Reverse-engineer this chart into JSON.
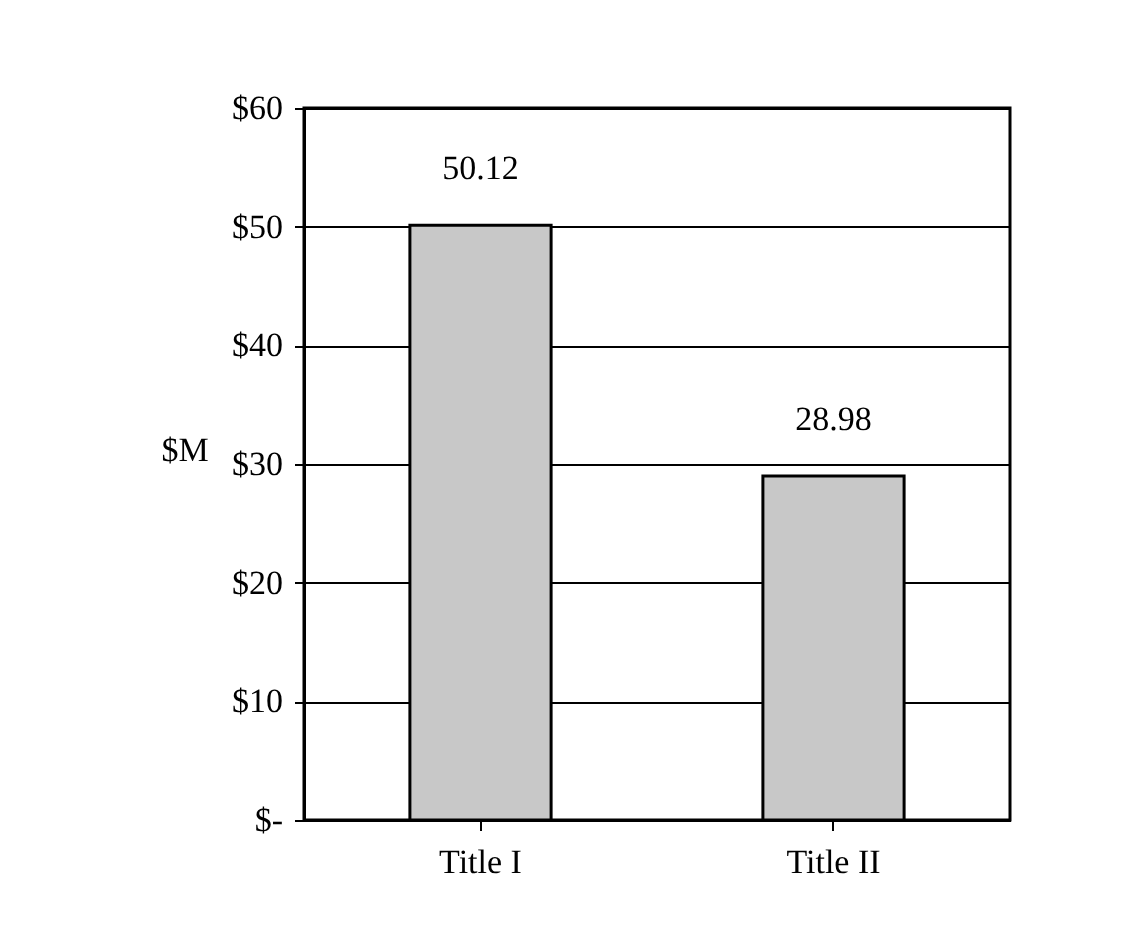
{
  "chart_data": {
    "type": "bar",
    "categories": [
      "Title I",
      "Title II"
    ],
    "values": [
      50.12,
      28.98
    ],
    "color": "#c8c8c8",
    "ylabel": "$M",
    "ylim": [
      0,
      60
    ],
    "yticks": [
      {
        "value": 0,
        "label": "$-"
      },
      {
        "value": 10,
        "label": "$10"
      },
      {
        "value": 20,
        "label": "$20"
      },
      {
        "value": 30,
        "label": "$30"
      },
      {
        "value": 40,
        "label": "$40"
      },
      {
        "value": 50,
        "label": "$50"
      },
      {
        "value": 60,
        "label": "$60"
      }
    ],
    "grid": "y",
    "data_labels": true
  }
}
